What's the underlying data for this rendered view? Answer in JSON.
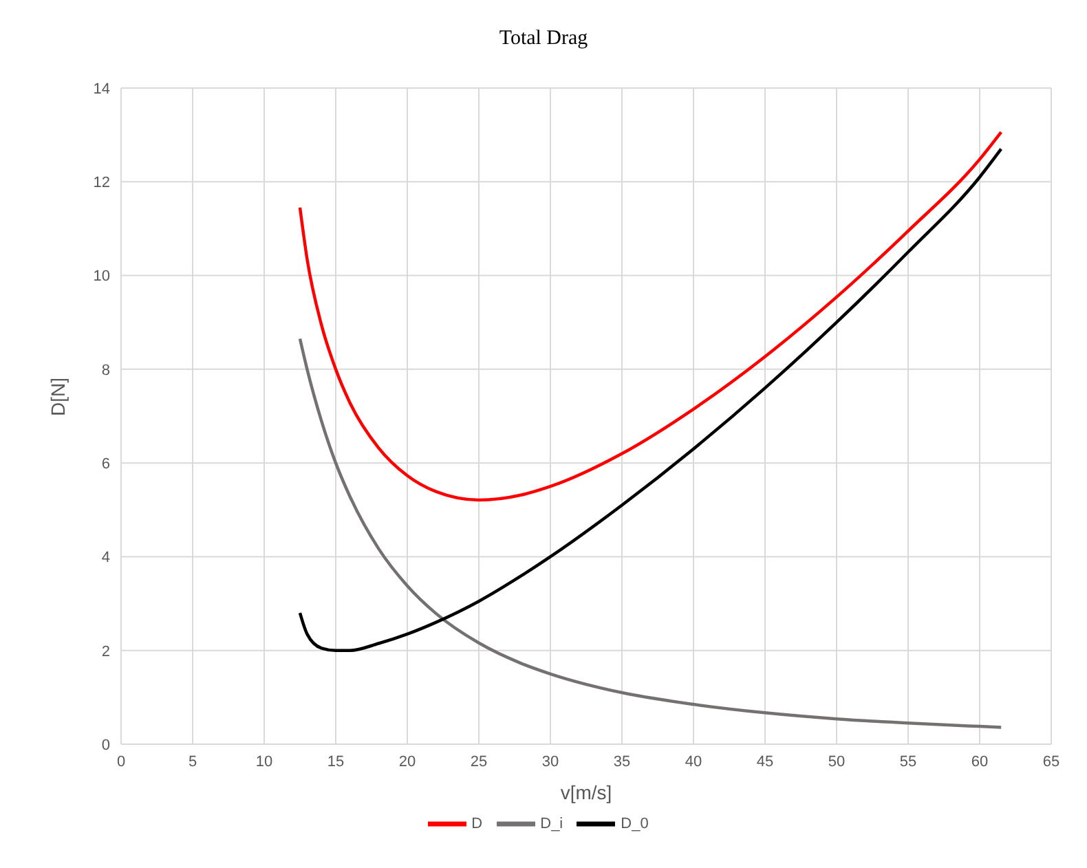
{
  "chart_data": {
    "type": "line",
    "title": "Total Drag",
    "xlabel": "v[m/s]",
    "ylabel": "D[N]",
    "x": [
      12.5,
      13,
      14,
      15,
      16,
      18,
      20,
      22,
      25,
      28,
      30,
      35,
      40,
      45,
      50,
      55,
      60,
      61.5
    ],
    "series": [
      {
        "name": "D",
        "color": "#ff0000",
        "values": [
          11.45,
          10.35,
          8.95,
          8.0,
          7.28,
          6.32,
          5.73,
          5.39,
          5.21,
          5.32,
          5.5,
          6.2,
          7.15,
          8.27,
          9.54,
          10.95,
          12.48,
          13.06
        ]
      },
      {
        "name": "D_i",
        "color": "#767171",
        "values": [
          8.65,
          8.0,
          6.9,
          6.0,
          5.28,
          4.17,
          3.38,
          2.79,
          2.16,
          1.72,
          1.5,
          1.1,
          0.85,
          0.67,
          0.54,
          0.45,
          0.38,
          0.36
        ]
      },
      {
        "name": "D_0",
        "color": "#000000",
        "values": [
          2.8,
          2.35,
          2.05,
          2.0,
          2.0,
          2.15,
          2.35,
          2.6,
          3.05,
          3.6,
          4.0,
          5.1,
          6.3,
          7.6,
          9.0,
          10.5,
          12.1,
          12.7
        ]
      }
    ],
    "xlim": [
      0,
      65
    ],
    "xticks": [
      0,
      5,
      10,
      15,
      20,
      25,
      30,
      35,
      40,
      45,
      50,
      55,
      60,
      65
    ],
    "ylim": [
      0,
      14
    ],
    "yticks": [
      0,
      2,
      4,
      6,
      8,
      10,
      12,
      14
    ],
    "grid": true,
    "legend": "bottom",
    "marker": "none",
    "line_style": "solid"
  }
}
